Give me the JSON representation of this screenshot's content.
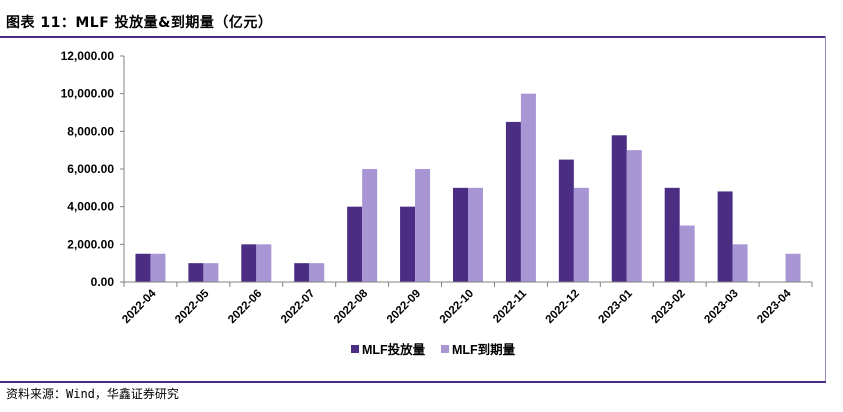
{
  "header": {
    "title": "图表 11：MLF 投放量&到期量（亿元）"
  },
  "footer": {
    "source": "资料来源：Wind，华鑫证券研究"
  },
  "colors": {
    "series_dark": "#4b2d83",
    "series_light": "#a895d4",
    "rule": "#4a2c82"
  },
  "chart_data": {
    "type": "bar",
    "title": "",
    "xlabel": "",
    "ylabel": "",
    "ylim": [
      0,
      12000
    ],
    "yticks": [
      0,
      2000,
      4000,
      6000,
      8000,
      10000,
      12000
    ],
    "ytick_labels": [
      "0.00",
      "2,000.00",
      "4,000.00",
      "6,000.00",
      "8,000.00",
      "10,000.00",
      "12,000.00"
    ],
    "categories": [
      "2022-04",
      "2022-05",
      "2022-06",
      "2022-07",
      "2022-08",
      "2022-09",
      "2022-10",
      "2022-11",
      "2022-12",
      "2023-01",
      "2023-02",
      "2023-03",
      "2023-04"
    ],
    "series": [
      {
        "name": "MLF投放量",
        "color": "#4b2d83",
        "values": [
          1500,
          1000,
          2000,
          1000,
          4000,
          4000,
          5000,
          8500,
          6500,
          7790,
          5000,
          4810,
          0
        ]
      },
      {
        "name": "MLF到期量",
        "color": "#a895d4",
        "values": [
          1500,
          1000,
          2000,
          1000,
          6000,
          6000,
          5000,
          10000,
          5000,
          7000,
          3000,
          2000,
          1500
        ]
      }
    ],
    "grid": false,
    "legend_position": "bottom"
  }
}
